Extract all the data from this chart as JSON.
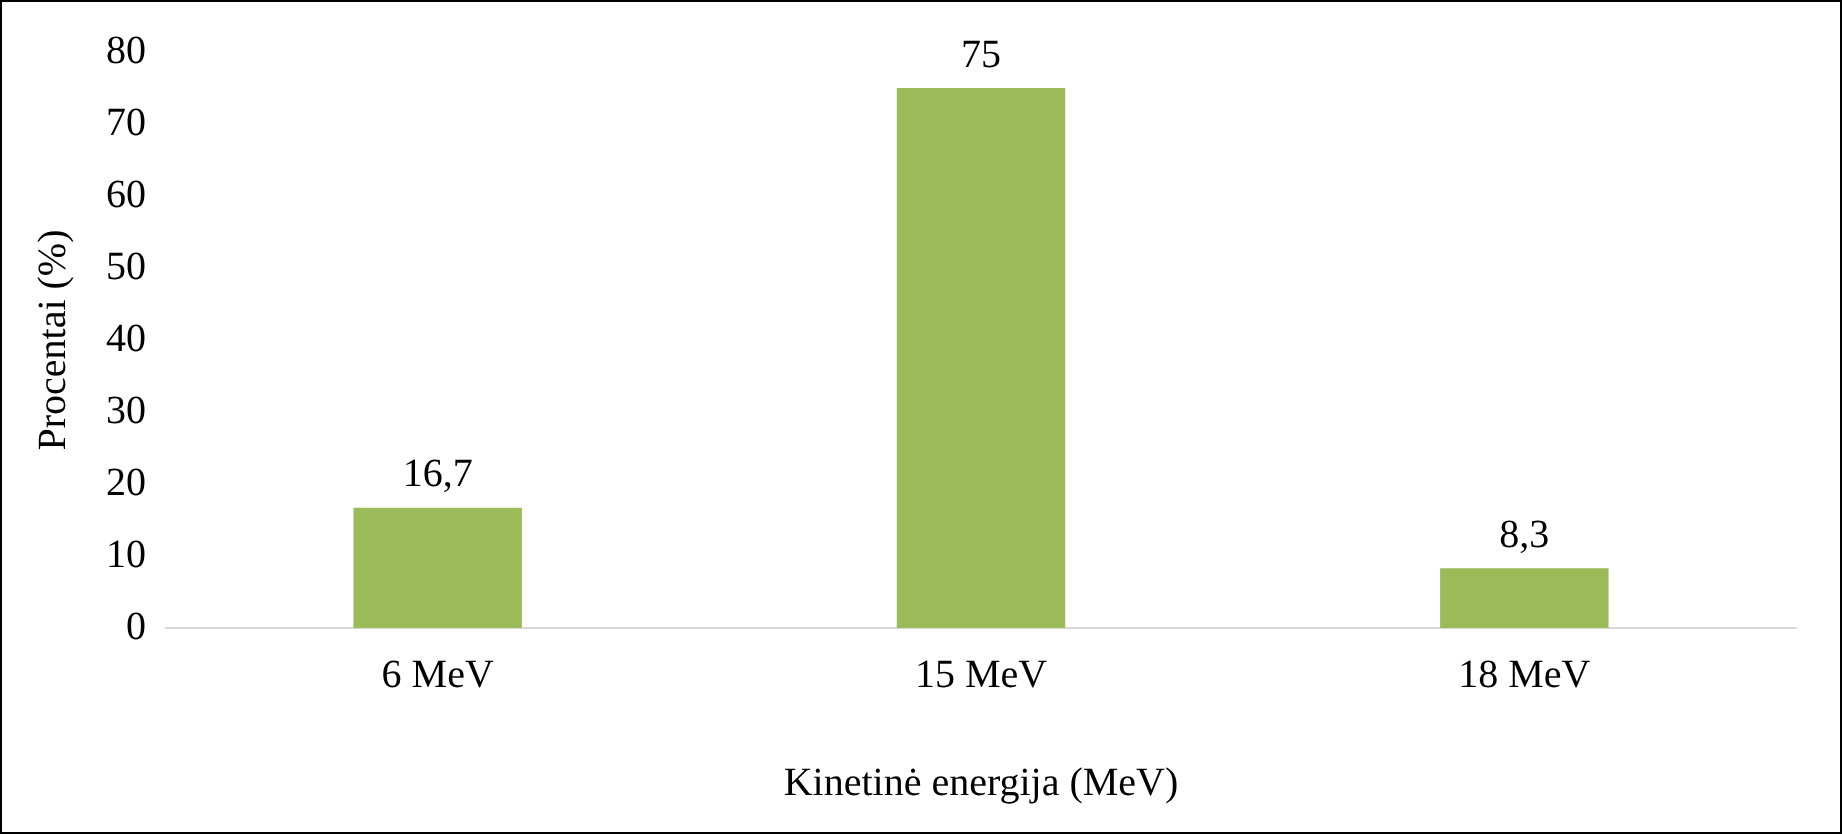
{
  "chart_data": {
    "type": "bar",
    "categories": [
      "6 MeV",
      "15 MeV",
      "18 MeV"
    ],
    "values": [
      16.7,
      75,
      8.3
    ],
    "value_labels": [
      "16,7",
      "75",
      "8,3"
    ],
    "color": "#9bbb59",
    "ylim": [
      0,
      80
    ],
    "yticks": [
      0,
      10,
      20,
      30,
      40,
      50,
      60,
      70,
      80
    ],
    "xlabel": "Kinetinė energija (MeV)",
    "ylabel": "Procentai (%)"
  }
}
